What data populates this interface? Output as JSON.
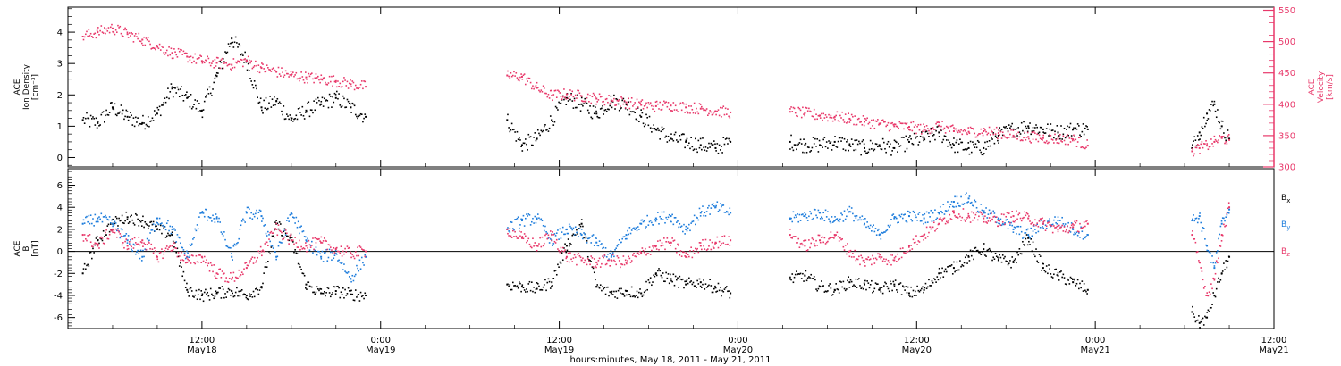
{
  "chart_data": {
    "type": "scatter",
    "xlabel": "hours:minutes, May 18, 2011 - May 21, 2011",
    "x_ticks": [
      {
        "hour": 12,
        "time": "12:00",
        "date": "May18"
      },
      {
        "hour": 24,
        "time": "0:00",
        "date": "May19"
      },
      {
        "hour": 36,
        "time": "12:00",
        "date": "May19"
      },
      {
        "hour": 48,
        "time": "0:00",
        "date": "May20"
      },
      {
        "hour": 60,
        "time": "12:00",
        "date": "May20"
      },
      {
        "hour": 72,
        "time": "0:00",
        "date": "May21"
      },
      {
        "hour": 84,
        "time": "12:00",
        "date": "May21"
      }
    ],
    "x_range_hours": [
      3,
      84
    ],
    "data_segments_hours": [
      [
        4,
        23
      ],
      [
        32.5,
        47.5
      ],
      [
        51.5,
        71.8
      ],
      [
        78.5,
        81
      ]
    ],
    "colors": {
      "black": "#000000",
      "blue": "#1e7ddc",
      "red": "#e8386a"
    },
    "panels": [
      {
        "id": "plasma",
        "ylabel": [
          "ACE",
          "Ion Density",
          "[cm⁻³]"
        ],
        "ylim": [
          -0.3,
          4.8
        ],
        "yticks": [
          0,
          1,
          2,
          3,
          4
        ],
        "y2label": [
          "ACE",
          "Velocity",
          "[km/s]"
        ],
        "y2lim": [
          300,
          555
        ],
        "y2ticks": [
          300,
          350,
          400,
          450,
          500,
          550
        ],
        "series": [
          {
            "name": "Ion Density",
            "axis": "left",
            "color": "black",
            "x": [
              4,
              5,
              6,
              7,
              8,
              9,
              10,
              11,
              12,
              13,
              14,
              15,
              16,
              17,
              18,
              19,
              20,
              21,
              22,
              23,
              32.5,
              33.5,
              34.5,
              35.5,
              36.5,
              37.5,
              38.5,
              39.5,
              40.5,
              41.5,
              42.5,
              43.5,
              44.5,
              45.5,
              46.5,
              47.5,
              51.5,
              52.5,
              53.5,
              54.5,
              55.5,
              56.5,
              57.5,
              58.5,
              59.5,
              60.5,
              61.5,
              62.5,
              63.5,
              64.5,
              65.5,
              66.5,
              67.5,
              68.5,
              69.5,
              70.5,
              71.5,
              78.5,
              79,
              79.5,
              80,
              80.5,
              81
            ],
            "y": [
              1.2,
              1.1,
              1.6,
              1.3,
              1.1,
              1.4,
              2.2,
              1.9,
              1.5,
              2.6,
              3.8,
              3.1,
              1.6,
              1.8,
              1.2,
              1.5,
              1.7,
              1.9,
              1.6,
              1.3,
              1.2,
              0.4,
              0.6,
              1.2,
              1.9,
              1.7,
              1.4,
              1.8,
              1.7,
              1.3,
              0.9,
              0.6,
              0.5,
              0.4,
              0.3,
              0.5,
              0.5,
              0.4,
              0.4,
              0.5,
              0.4,
              0.3,
              0.4,
              0.3,
              0.5,
              0.6,
              0.8,
              0.4,
              0.3,
              0.3,
              0.7,
              0.9,
              1.0,
              0.9,
              0.8,
              0.9,
              0.9,
              0.3,
              0.8,
              1.4,
              1.7,
              1.0,
              0.6
            ]
          },
          {
            "name": "Velocity",
            "axis": "right",
            "color": "red",
            "x": [
              4,
              5,
              6,
              7,
              8,
              9,
              10,
              11,
              12,
              13,
              14,
              15,
              16,
              17,
              18,
              19,
              20,
              21,
              22,
              23,
              32.5,
              33.5,
              34.5,
              35.5,
              36.5,
              37.5,
              38.5,
              39.5,
              40.5,
              41.5,
              42.5,
              43.5,
              44.5,
              45.5,
              46.5,
              47.5,
              51.5,
              52.5,
              53.5,
              54.5,
              55.5,
              56.5,
              57.5,
              58.5,
              59.5,
              60.5,
              61.5,
              62.5,
              63.5,
              64.5,
              65.5,
              66.5,
              67.5,
              68.5,
              69.5,
              70.5,
              71.5,
              78.5,
              79,
              79.5,
              80,
              80.5,
              81
            ],
            "y": [
              508,
              515,
              521,
              512,
              503,
              493,
              482,
              476,
              469,
              466,
              463,
              470,
              458,
              452,
              446,
              443,
              440,
              437,
              432,
              428,
              446,
              444,
              426,
              414,
              416,
              413,
              409,
              406,
              403,
              399,
              397,
              398,
              395,
              393,
              389,
              387,
              388,
              386,
              382,
              380,
              377,
              372,
              369,
              365,
              364,
              360,
              366,
              357,
              356,
              357,
              354,
              350,
              348,
              346,
              345,
              344,
              334,
              325,
              330,
              334,
              340,
              346,
              343
            ]
          }
        ]
      },
      {
        "id": "magnetic",
        "ylabel": [
          "ACE",
          "B",
          "[nT]"
        ],
        "ylim": [
          -7,
          7.5
        ],
        "yticks": [
          -6,
          -4,
          -2,
          0,
          2,
          4,
          6
        ],
        "zero_line": true,
        "legend_placement": "right",
        "legend": [
          {
            "label": "B",
            "sub": "x",
            "color": "black"
          },
          {
            "label": "B",
            "sub": "y",
            "color": "blue"
          },
          {
            "label": "B",
            "sub": "z",
            "color": "red"
          }
        ],
        "series": [
          {
            "name": "Bx",
            "color": "black",
            "x": [
              4,
              5,
              6,
              7,
              8,
              9,
              10,
              11,
              12,
              13,
              14,
              15,
              16,
              17,
              18,
              19,
              20,
              21,
              22,
              23,
              32.5,
              33.5,
              34.5,
              35.5,
              36.5,
              37.5,
              38.5,
              39.5,
              40.5,
              41.5,
              42.5,
              43.5,
              44.5,
              45.5,
              46.5,
              47.5,
              51.5,
              52.5,
              53.5,
              54.5,
              55.5,
              56.5,
              57.5,
              58.5,
              59.5,
              60.5,
              61.5,
              62.5,
              63.5,
              64.5,
              65.5,
              66.5,
              67.5,
              68.5,
              69.5,
              70.5,
              71.5,
              78.5,
              79,
              79.5,
              80,
              80.5,
              81
            ],
            "y": [
              -2.0,
              1.0,
              2.5,
              3.1,
              2.8,
              2.0,
              1.5,
              -3.5,
              -4.0,
              -3.8,
              -3.6,
              -4.0,
              -3.2,
              2.5,
              1.0,
              -3.0,
              -3.8,
              -3.6,
              -3.9,
              -4.0,
              -3.0,
              -3.2,
              -3.4,
              -2.8,
              0.5,
              2.5,
              -3.2,
              -3.8,
              -3.6,
              -3.8,
              -2.0,
              -2.5,
              -3.0,
              -2.8,
              -3.3,
              -3.8,
              -2.5,
              -2.2,
              -3.2,
              -3.5,
              -2.8,
              -3.0,
              -3.5,
              -3.0,
              -3.8,
              -3.5,
              -2.0,
              -1.5,
              -0.5,
              0.2,
              -0.8,
              -1.0,
              1.2,
              -1.5,
              -2.2,
              -2.8,
              -3.5,
              -5.5,
              -6.5,
              -6.0,
              -4.0,
              -2.0,
              -0.5
            ]
          },
          {
            "name": "By",
            "color": "blue",
            "x": [
              4,
              5,
              6,
              7,
              8,
              9,
              10,
              11,
              12,
              13,
              14,
              15,
              16,
              17,
              18,
              19,
              20,
              21,
              22,
              23,
              32.5,
              33.5,
              34.5,
              35.5,
              36.5,
              37.5,
              38.5,
              39.5,
              40.5,
              41.5,
              42.5,
              43.5,
              44.5,
              45.5,
              46.5,
              47.5,
              51.5,
              52.5,
              53.5,
              54.5,
              55.5,
              56.5,
              57.5,
              58.5,
              59.5,
              60.5,
              61.5,
              62.5,
              63.5,
              64.5,
              65.5,
              66.5,
              67.5,
              68.5,
              69.5,
              70.5,
              71.5,
              78.5,
              79,
              79.5,
              80,
              80.5,
              81
            ],
            "y": [
              2.5,
              3.0,
              2.5,
              1.0,
              -0.5,
              3.0,
              2.0,
              -0.5,
              3.5,
              3.0,
              -0.5,
              3.5,
              3.2,
              -0.5,
              3.5,
              1.0,
              -0.5,
              -0.2,
              -2.5,
              -0.5,
              2.0,
              2.8,
              3.0,
              1.0,
              2.0,
              1.5,
              0.8,
              -0.5,
              1.5,
              2.5,
              3.0,
              3.2,
              2.0,
              3.5,
              4.0,
              3.5,
              3.0,
              3.2,
              3.5,
              2.8,
              3.6,
              2.5,
              1.5,
              3.0,
              3.2,
              3.0,
              3.5,
              4.5,
              4.8,
              3.5,
              3.0,
              2.0,
              1.5,
              2.5,
              2.8,
              2.0,
              1.5,
              2.8,
              3.2,
              0.5,
              -1.5,
              2.5,
              3.8
            ]
          },
          {
            "name": "Bz",
            "color": "red",
            "x": [
              4,
              5,
              6,
              7,
              8,
              9,
              10,
              11,
              12,
              13,
              14,
              15,
              16,
              17,
              18,
              19,
              20,
              21,
              22,
              23,
              32.5,
              33.5,
              34.5,
              35.5,
              36.5,
              37.5,
              38.5,
              39.5,
              40.5,
              41.5,
              42.5,
              43.5,
              44.5,
              45.5,
              46.5,
              47.5,
              51.5,
              52.5,
              53.5,
              54.5,
              55.5,
              56.5,
              57.5,
              58.5,
              59.5,
              60.5,
              61.5,
              62.5,
              63.5,
              64.5,
              65.5,
              66.5,
              67.5,
              68.5,
              69.5,
              70.5,
              71.5,
              78.5,
              79,
              79.5,
              80,
              80.5,
              81
            ],
            "y": [
              1.5,
              0.5,
              2.0,
              0.5,
              1.0,
              -0.5,
              0.5,
              -1.0,
              -0.5,
              -2.0,
              -2.5,
              -1.5,
              0.0,
              2.0,
              1.0,
              0.5,
              0.8,
              0.2,
              -0.2,
              0.0,
              2.0,
              1.2,
              0.5,
              1.5,
              -0.5,
              -0.8,
              -1.0,
              -0.8,
              -1.0,
              -0.2,
              0.5,
              0.8,
              -0.5,
              0.5,
              0.8,
              1.0,
              1.5,
              0.5,
              1.0,
              1.5,
              0.0,
              -1.0,
              -0.5,
              -0.8,
              0.5,
              1.5,
              2.5,
              3.5,
              3.2,
              3.0,
              2.8,
              3.2,
              3.0,
              2.5,
              2.0,
              2.2,
              2.5,
              1.5,
              -1.0,
              -4.0,
              -2.5,
              1.5,
              4.0
            ]
          }
        ]
      }
    ]
  }
}
